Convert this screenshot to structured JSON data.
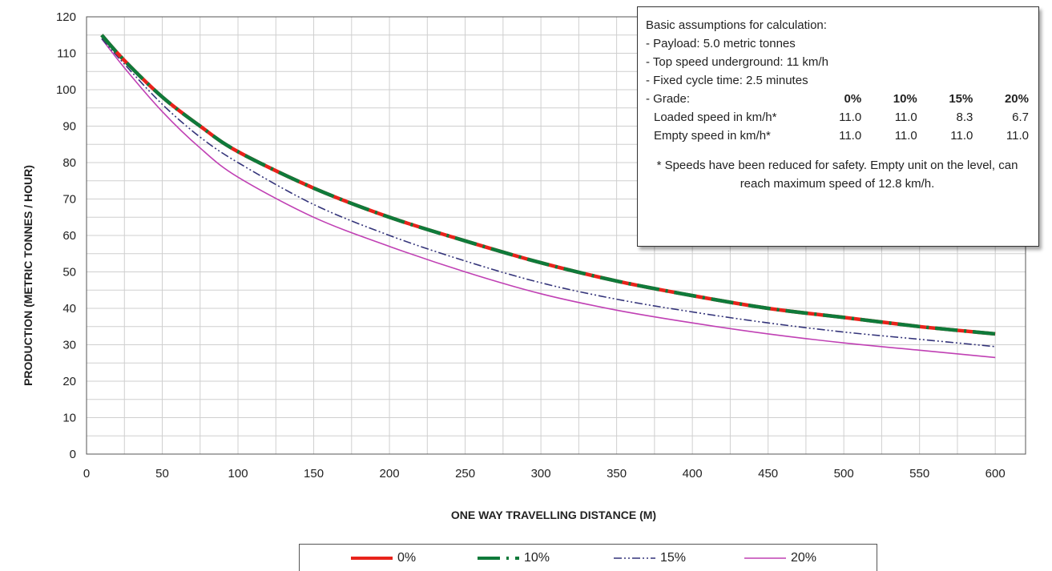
{
  "chart_data": {
    "type": "line",
    "xlabel": "ONE WAY TRAVELLING DISTANCE (M)",
    "ylabel": "PRODUCTION (METRIC TONNES / HOUR)",
    "xlim": [
      0,
      620
    ],
    "ylim": [
      0,
      120
    ],
    "x_ticks": [
      0,
      50,
      100,
      150,
      200,
      250,
      300,
      350,
      400,
      450,
      500,
      550,
      600
    ],
    "y_ticks": [
      0,
      10,
      20,
      30,
      40,
      50,
      60,
      70,
      80,
      90,
      100,
      110,
      120
    ],
    "grid": true,
    "legend_position": "bottom",
    "x": [
      10,
      25,
      50,
      75,
      100,
      150,
      200,
      250,
      300,
      350,
      400,
      450,
      500,
      550,
      600
    ],
    "series": [
      {
        "name": "0%",
        "color": "#e8231b",
        "values": [
          115,
          108,
          98,
          90,
          83,
          73,
          65,
          58.5,
          52.5,
          47.5,
          43.5,
          40,
          37.5,
          35,
          33
        ]
      },
      {
        "name": "10%",
        "color": "#0f7a3a",
        "values": [
          115,
          108,
          98,
          90,
          83,
          73,
          65,
          58.5,
          52.5,
          47.5,
          43.5,
          40,
          37.5,
          35,
          33
        ]
      },
      {
        "name": "15%",
        "color": "#34347a",
        "values": [
          114,
          107,
          96,
          87,
          80,
          68.5,
          60,
          53,
          47,
          42.5,
          39,
          36,
          33.5,
          31.5,
          29.5
        ]
      },
      {
        "name": "20%",
        "color": "#c040b4",
        "values": [
          114,
          106,
          94,
          84,
          76,
          65,
          57,
          50,
          44,
          39.5,
          36,
          33,
          30.5,
          28.5,
          26.5
        ]
      }
    ]
  },
  "info_box": {
    "title": "Basic assumptions for calculation:",
    "payload": "- Payload: 5.0 metric tonnes",
    "top_speed": "- Top speed underground: 11 km/h",
    "cycle_time": "- Fixed cycle time: 2.5 minutes",
    "grade_label": "- Grade:",
    "grades": [
      "0%",
      "10%",
      "15%",
      "20%"
    ],
    "loaded_label": "Loaded speed in km/h*",
    "loaded_values": [
      "11.0",
      "11.0",
      "8.3",
      "6.7"
    ],
    "empty_label": "Empty speed in km/h*",
    "empty_values": [
      "11.0",
      "11.0",
      "11.0",
      "11.0"
    ],
    "note": "* Speeds have been reduced for safety.  Empty unit on the level, can reach maximum speed of 12.8 km/h."
  }
}
